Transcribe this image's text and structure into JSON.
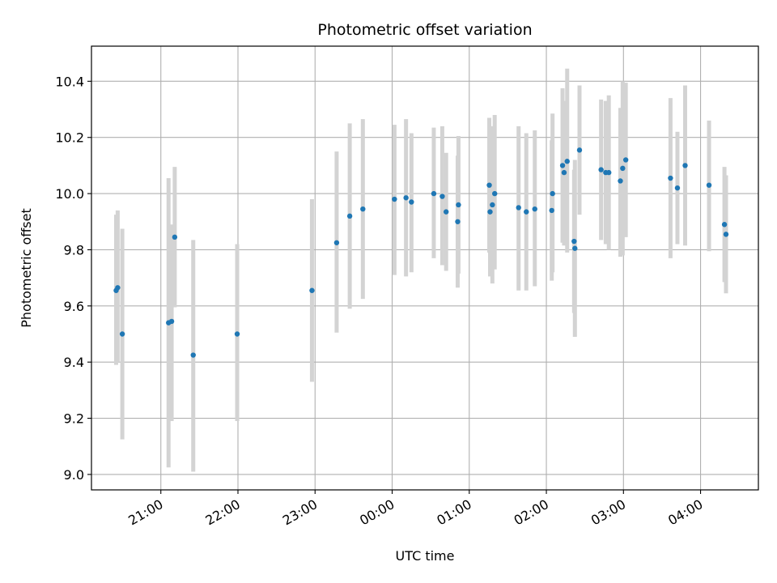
{
  "chart_data": {
    "type": "scatter",
    "title": "Photometric offset variation",
    "xlabel": "UTC time",
    "ylabel": "Photometric offset",
    "x_unit": "UTC time (hours from 00:00)",
    "xlim": [
      -3.9,
      4.75
    ],
    "ylim": [
      8.945,
      10.525
    ],
    "grid": true,
    "x_ticks": [
      {
        "value": -3,
        "label": "21:00"
      },
      {
        "value": -2,
        "label": "22:00"
      },
      {
        "value": -1,
        "label": "23:00"
      },
      {
        "value": 0,
        "label": "00:00"
      },
      {
        "value": 1,
        "label": "01:00"
      },
      {
        "value": 2,
        "label": "02:00"
      },
      {
        "value": 3,
        "label": "03:00"
      },
      {
        "value": 4,
        "label": "04:00"
      }
    ],
    "y_ticks": [
      {
        "value": 9.0,
        "label": "9.0"
      },
      {
        "value": 9.2,
        "label": "9.2"
      },
      {
        "value": 9.4,
        "label": "9.4"
      },
      {
        "value": 9.6,
        "label": "9.6"
      },
      {
        "value": 9.8,
        "label": "9.8"
      },
      {
        "value": 10.0,
        "label": "10.0"
      },
      {
        "value": 10.2,
        "label": "10.2"
      },
      {
        "value": 10.4,
        "label": "10.4"
      }
    ],
    "colors": {
      "points": "#1f77b4",
      "error_bars": "#d3d3d3",
      "grid": "#b0b0b0"
    },
    "series": [
      {
        "points": [
          {
            "x": -3.58,
            "y": 9.655,
            "lo": 9.39,
            "hi": 9.925
          },
          {
            "x": -3.56,
            "y": 9.665,
            "lo": 9.4,
            "hi": 9.94
          },
          {
            "x": -3.5,
            "y": 9.5,
            "lo": 9.125,
            "hi": 9.875
          },
          {
            "x": -2.9,
            "y": 9.54,
            "lo": 9.025,
            "hi": 10.055
          },
          {
            "x": -2.86,
            "y": 9.545,
            "lo": 9.19,
            "hi": 9.89
          },
          {
            "x": -2.82,
            "y": 9.845,
            "lo": 9.595,
            "hi": 10.095
          },
          {
            "x": -2.58,
            "y": 9.425,
            "lo": 9.01,
            "hi": 9.835
          },
          {
            "x": -2.01,
            "y": 9.5,
            "lo": 9.19,
            "hi": 9.82
          },
          {
            "x": -1.04,
            "y": 9.655,
            "lo": 9.33,
            "hi": 9.98
          },
          {
            "x": -0.72,
            "y": 9.825,
            "lo": 9.505,
            "hi": 10.15
          },
          {
            "x": -0.55,
            "y": 9.92,
            "lo": 9.59,
            "hi": 10.25
          },
          {
            "x": -0.38,
            "y": 9.945,
            "lo": 9.625,
            "hi": 10.265
          },
          {
            "x": 0.03,
            "y": 9.98,
            "lo": 9.71,
            "hi": 10.245
          },
          {
            "x": 0.18,
            "y": 9.985,
            "lo": 9.705,
            "hi": 10.265
          },
          {
            "x": 0.25,
            "y": 9.97,
            "lo": 9.72,
            "hi": 10.215
          },
          {
            "x": 0.54,
            "y": 10.0,
            "lo": 9.77,
            "hi": 10.235
          },
          {
            "x": 0.65,
            "y": 9.99,
            "lo": 9.745,
            "hi": 10.24
          },
          {
            "x": 0.7,
            "y": 9.935,
            "lo": 9.725,
            "hi": 10.145
          },
          {
            "x": 0.85,
            "y": 9.9,
            "lo": 9.665,
            "hi": 10.135
          },
          {
            "x": 0.86,
            "y": 9.96,
            "lo": 9.715,
            "hi": 10.205
          },
          {
            "x": 1.26,
            "y": 10.03,
            "lo": 9.79,
            "hi": 10.27
          },
          {
            "x": 1.27,
            "y": 9.935,
            "lo": 9.705,
            "hi": 10.165
          },
          {
            "x": 1.3,
            "y": 9.96,
            "lo": 9.68,
            "hi": 10.24
          },
          {
            "x": 1.33,
            "y": 10.0,
            "lo": 9.73,
            "hi": 10.28
          },
          {
            "x": 1.64,
            "y": 9.95,
            "lo": 9.655,
            "hi": 10.24
          },
          {
            "x": 1.74,
            "y": 9.935,
            "lo": 9.655,
            "hi": 10.215
          },
          {
            "x": 1.85,
            "y": 9.945,
            "lo": 9.67,
            "hi": 10.225
          },
          {
            "x": 2.07,
            "y": 9.94,
            "lo": 9.69,
            "hi": 10.19
          },
          {
            "x": 2.08,
            "y": 10.0,
            "lo": 9.72,
            "hi": 10.285
          },
          {
            "x": 2.21,
            "y": 10.1,
            "lo": 9.825,
            "hi": 10.375
          },
          {
            "x": 2.23,
            "y": 10.075,
            "lo": 9.815,
            "hi": 10.33
          },
          {
            "x": 2.27,
            "y": 10.115,
            "lo": 9.79,
            "hi": 10.445
          },
          {
            "x": 2.36,
            "y": 9.83,
            "lo": 9.575,
            "hi": 10.085
          },
          {
            "x": 2.37,
            "y": 9.805,
            "lo": 9.49,
            "hi": 10.12
          },
          {
            "x": 2.43,
            "y": 10.155,
            "lo": 9.925,
            "hi": 10.385
          },
          {
            "x": 2.71,
            "y": 10.085,
            "lo": 9.835,
            "hi": 10.335
          },
          {
            "x": 2.77,
            "y": 10.075,
            "lo": 9.82,
            "hi": 10.33
          },
          {
            "x": 2.81,
            "y": 10.075,
            "lo": 9.8,
            "hi": 10.35
          },
          {
            "x": 2.96,
            "y": 10.045,
            "lo": 9.775,
            "hi": 10.305
          },
          {
            "x": 2.99,
            "y": 10.09,
            "lo": 9.78,
            "hi": 10.4
          },
          {
            "x": 3.03,
            "y": 10.12,
            "lo": 9.845,
            "hi": 10.395
          },
          {
            "x": 3.61,
            "y": 10.055,
            "lo": 9.77,
            "hi": 10.34
          },
          {
            "x": 3.7,
            "y": 10.02,
            "lo": 9.82,
            "hi": 10.22
          },
          {
            "x": 3.8,
            "y": 10.1,
            "lo": 9.815,
            "hi": 10.385
          },
          {
            "x": 4.11,
            "y": 10.03,
            "lo": 9.795,
            "hi": 10.26
          },
          {
            "x": 4.31,
            "y": 9.89,
            "lo": 9.685,
            "hi": 10.095
          },
          {
            "x": 4.33,
            "y": 9.855,
            "lo": 9.645,
            "hi": 10.065
          }
        ]
      }
    ]
  }
}
